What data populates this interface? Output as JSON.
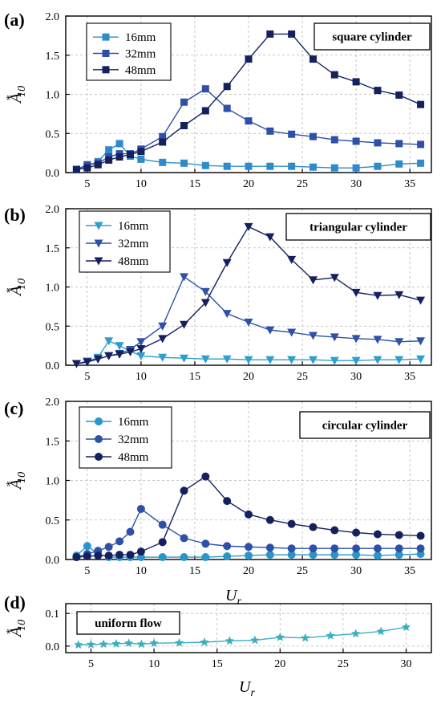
{
  "figure": {
    "xlabel_main": "U",
    "xlabel_sub": "r",
    "ylabel_main": "A",
    "ylabel_sub": "10",
    "ylabel_sup": "*"
  },
  "chart_data": [
    {
      "type": "line",
      "panel_label": "(a)",
      "annotation": "square cylinder",
      "marker": "square",
      "xlim": [
        3,
        37
      ],
      "ylim": [
        0,
        2.0
      ],
      "x_ticks": [
        5,
        10,
        15,
        20,
        25,
        30,
        35
      ],
      "y_ticks": [
        0.0,
        0.5,
        1.0,
        1.5,
        2.0
      ],
      "y_tick_labels": [
        "0.0",
        "0.5",
        "1.0",
        "1.5",
        "2.0"
      ],
      "grid": true,
      "legend_position": "top-left",
      "series": [
        {
          "name": "16mm",
          "color": "#2e8bc9",
          "x": [
            4,
            5,
            6,
            7,
            8,
            9,
            10,
            12,
            14,
            16,
            18,
            20,
            22,
            24,
            26,
            28,
            30,
            32,
            34,
            36
          ],
          "y": [
            0.04,
            0.09,
            0.14,
            0.29,
            0.37,
            0.21,
            0.17,
            0.13,
            0.12,
            0.09,
            0.08,
            0.08,
            0.08,
            0.08,
            0.07,
            0.06,
            0.06,
            0.08,
            0.11,
            0.12
          ]
        },
        {
          "name": "32mm",
          "color": "#2f50a8",
          "x": [
            4,
            5,
            6,
            7,
            8,
            9,
            10,
            12,
            14,
            16,
            18,
            20,
            22,
            24,
            26,
            28,
            30,
            32,
            34,
            36
          ],
          "y": [
            0.04,
            0.1,
            0.12,
            0.2,
            0.24,
            0.24,
            0.3,
            0.46,
            0.9,
            1.07,
            0.82,
            0.66,
            0.53,
            0.49,
            0.46,
            0.42,
            0.4,
            0.38,
            0.37,
            0.36
          ]
        },
        {
          "name": "48mm",
          "color": "#15215e",
          "x": [
            4,
            5,
            6,
            7,
            8,
            9,
            10,
            12,
            14,
            16,
            18,
            20,
            22,
            24,
            26,
            28,
            30,
            32,
            34,
            36
          ],
          "y": [
            0.04,
            0.06,
            0.1,
            0.16,
            0.2,
            0.23,
            0.27,
            0.39,
            0.6,
            0.79,
            1.1,
            1.45,
            1.77,
            1.77,
            1.45,
            1.25,
            1.16,
            1.05,
            0.99,
            0.87
          ]
        }
      ]
    },
    {
      "type": "line",
      "panel_label": "(b)",
      "annotation": "triangular cylinder",
      "marker": "triangle-down",
      "xlim": [
        3,
        37
      ],
      "ylim": [
        0,
        2.0
      ],
      "x_ticks": [
        5,
        10,
        15,
        20,
        25,
        30,
        35
      ],
      "y_ticks": [
        0.0,
        0.5,
        1.0,
        1.5,
        2.0
      ],
      "y_tick_labels": [
        "0.0",
        "0.5",
        "1.0",
        "1.5",
        "2.0"
      ],
      "grid": true,
      "legend_position": "top-left",
      "series": [
        {
          "name": "16mm",
          "color": "#2e9fcc",
          "x": [
            4,
            5,
            6,
            7,
            8,
            9,
            10,
            12,
            14,
            16,
            18,
            20,
            22,
            24,
            26,
            28,
            30,
            32,
            34,
            36
          ],
          "y": [
            0.02,
            0.05,
            0.1,
            0.31,
            0.25,
            0.18,
            0.12,
            0.1,
            0.09,
            0.08,
            0.08,
            0.07,
            0.07,
            0.07,
            0.07,
            0.06,
            0.06,
            0.07,
            0.07,
            0.08
          ]
        },
        {
          "name": "32mm",
          "color": "#2f50a8",
          "x": [
            4,
            5,
            6,
            7,
            8,
            9,
            10,
            12,
            14,
            16,
            18,
            20,
            22,
            24,
            26,
            28,
            30,
            32,
            34,
            36
          ],
          "y": [
            0.02,
            0.05,
            0.08,
            0.12,
            0.15,
            0.2,
            0.3,
            0.5,
            1.13,
            0.94,
            0.66,
            0.55,
            0.45,
            0.42,
            0.38,
            0.36,
            0.34,
            0.33,
            0.3,
            0.31
          ]
        },
        {
          "name": "48mm",
          "color": "#15215e",
          "x": [
            4,
            5,
            6,
            7,
            8,
            9,
            10,
            12,
            14,
            16,
            18,
            20,
            22,
            24,
            26,
            28,
            30,
            32,
            34,
            36
          ],
          "y": [
            0.02,
            0.04,
            0.08,
            0.12,
            0.14,
            0.17,
            0.21,
            0.34,
            0.52,
            0.8,
            1.31,
            1.77,
            1.64,
            1.35,
            1.09,
            1.12,
            0.93,
            0.89,
            0.9,
            0.83
          ]
        }
      ]
    },
    {
      "type": "line",
      "panel_label": "(c)",
      "annotation": "circular cylinder",
      "marker": "circle",
      "xlim": [
        3,
        37
      ],
      "ylim": [
        0,
        2.0
      ],
      "x_ticks": [
        5,
        10,
        15,
        20,
        25,
        30,
        35
      ],
      "y_ticks": [
        0.0,
        0.5,
        1.0,
        1.5,
        2.0
      ],
      "y_tick_labels": [
        "0.0",
        "0.5",
        "1.0",
        "1.5",
        "2.0"
      ],
      "grid": true,
      "legend_position": "top-left",
      "series": [
        {
          "name": "16mm",
          "color": "#2a95c9",
          "x": [
            4,
            5,
            6,
            7,
            8,
            9,
            10,
            12,
            14,
            16,
            18,
            20,
            22,
            24,
            26,
            28,
            30,
            32,
            34,
            36
          ],
          "y": [
            0.05,
            0.17,
            0.07,
            0.03,
            0.03,
            0.03,
            0.03,
            0.03,
            0.03,
            0.03,
            0.04,
            0.05,
            0.06,
            0.06,
            0.06,
            0.06,
            0.06,
            0.05,
            0.06,
            0.07
          ]
        },
        {
          "name": "32mm",
          "color": "#2f50a8",
          "x": [
            4,
            5,
            6,
            7,
            8,
            9,
            10,
            12,
            14,
            16,
            18,
            20,
            22,
            24,
            26,
            28,
            30,
            32,
            34,
            36
          ],
          "y": [
            0.03,
            0.07,
            0.11,
            0.16,
            0.23,
            0.35,
            0.64,
            0.44,
            0.27,
            0.2,
            0.17,
            0.16,
            0.15,
            0.14,
            0.14,
            0.14,
            0.14,
            0.14,
            0.14,
            0.14
          ]
        },
        {
          "name": "48mm",
          "color": "#15215e",
          "x": [
            4,
            5,
            6,
            7,
            8,
            9,
            10,
            12,
            14,
            16,
            18,
            20,
            22,
            24,
            26,
            28,
            30,
            32,
            34,
            36
          ],
          "y": [
            0.03,
            0.04,
            0.05,
            0.05,
            0.06,
            0.06,
            0.1,
            0.22,
            0.87,
            1.05,
            0.74,
            0.57,
            0.5,
            0.45,
            0.41,
            0.37,
            0.34,
            0.32,
            0.31,
            0.3
          ]
        }
      ]
    },
    {
      "type": "line",
      "panel_label": "(d)",
      "annotation": "uniform flow",
      "marker": "star",
      "xlim": [
        3,
        32
      ],
      "ylim": [
        -0.02,
        0.13
      ],
      "x_ticks": [
        5,
        10,
        15,
        20,
        25,
        30
      ],
      "y_ticks": [
        0.0,
        0.1
      ],
      "y_tick_labels": [
        "0.0",
        "0.1"
      ],
      "grid": true,
      "legend_position": "none",
      "series": [
        {
          "color": "#3aaec0",
          "x": [
            4,
            5,
            6,
            7,
            8,
            9,
            10,
            12,
            14,
            16,
            18,
            20,
            22,
            24,
            26,
            28,
            30
          ],
          "y": [
            0.004,
            0.005,
            0.006,
            0.007,
            0.009,
            0.006,
            0.009,
            0.01,
            0.012,
            0.016,
            0.018,
            0.027,
            0.025,
            0.032,
            0.038,
            0.045,
            0.058
          ]
        }
      ]
    }
  ]
}
